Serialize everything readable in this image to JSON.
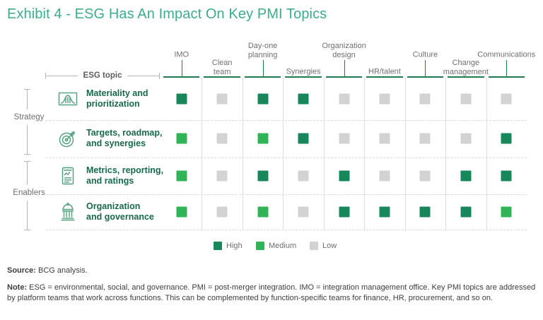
{
  "title": "Exhibit 4 - ESG Has An Impact On Key PMI Topics",
  "colors": {
    "high": "#17885C",
    "medium": "#2FB457",
    "low": "#D3D3D3",
    "title_accent": "#3CAC8D",
    "row_label_green": "#176A4A",
    "icon_green": "#4F9F7A",
    "header_line_green": "#1E7C50"
  },
  "matrix": {
    "axis_label": "ESG topic",
    "columns": [
      "IMO",
      "Clean\nteam",
      "Day-one\nplanning",
      "Synergies",
      "Organization\ndesign",
      "HR/talent",
      "Culture",
      "Change\nmanagement",
      "Communications"
    ],
    "row_groups": [
      {
        "label": "Strategy"
      },
      {
        "label": "Enablers"
      }
    ],
    "rows": [
      {
        "group": "Strategy",
        "icon": "bell-curve-chart-icon",
        "label": "Materiality and\nprioritization",
        "values": [
          "high",
          "low",
          "high",
          "high",
          "low",
          "low",
          "low",
          "low",
          "low"
        ]
      },
      {
        "group": "Strategy",
        "icon": "target-arrow-icon",
        "label": "Targets, roadmap,\nand synergies",
        "values": [
          "medium",
          "low",
          "medium",
          "high",
          "low",
          "low",
          "low",
          "low",
          "high"
        ]
      },
      {
        "group": "Enablers",
        "icon": "report-chart-icon",
        "label": "Metrics, reporting,\nand ratings",
        "values": [
          "medium",
          "low",
          "high",
          "low",
          "high",
          "low",
          "low",
          "high",
          "high"
        ]
      },
      {
        "group": "Enablers",
        "icon": "government-building-icon",
        "label": "Organization\nand governance",
        "values": [
          "medium",
          "low",
          "medium",
          "low",
          "high",
          "high",
          "high",
          "high",
          "medium"
        ]
      }
    ]
  },
  "legend": [
    {
      "label": "High",
      "level": "high"
    },
    {
      "label": "Medium",
      "level": "medium"
    },
    {
      "label": "Low",
      "level": "low"
    }
  ],
  "footer": {
    "source_label": "Source:",
    "source_text": "BCG analysis.",
    "note_label": "Note:",
    "note_text": "ESG = environmental, social, and governance. PMI = post-merger integration. IMO = integration management office. Key PMI topics are addressed by platform teams that work across functions. This can be complemented by function-specific teams for finance, HR, procurement, and so on."
  },
  "chart_data": {
    "type": "heatmap",
    "title": "Exhibit 4 - ESG Has An Impact On Key PMI Topics",
    "x_categories": [
      "IMO",
      "Clean team",
      "Day-one planning",
      "Synergies",
      "Organization design",
      "HR/talent",
      "Culture",
      "Change management",
      "Communications"
    ],
    "y_categories": [
      "Materiality and prioritization",
      "Targets, roadmap, and synergies",
      "Metrics, reporting, and ratings",
      "Organization and governance"
    ],
    "y_groups": [
      {
        "label": "Strategy",
        "rows": [
          0,
          1
        ]
      },
      {
        "label": "Enablers",
        "rows": [
          2,
          3
        ]
      }
    ],
    "values": [
      [
        "High",
        "Low",
        "High",
        "High",
        "Low",
        "Low",
        "Low",
        "Low",
        "Low"
      ],
      [
        "Medium",
        "Low",
        "Medium",
        "High",
        "Low",
        "Low",
        "Low",
        "Low",
        "High"
      ],
      [
        "Medium",
        "Low",
        "High",
        "Low",
        "High",
        "Low",
        "Low",
        "High",
        "High"
      ],
      [
        "Medium",
        "Low",
        "Medium",
        "Low",
        "High",
        "High",
        "High",
        "High",
        "Medium"
      ]
    ],
    "legend": [
      "High",
      "Medium",
      "Low"
    ],
    "legend_position": "bottom",
    "x_axis_label": "",
    "y_axis_label": "ESG topic",
    "grid": "column separators + dashed row separators"
  }
}
